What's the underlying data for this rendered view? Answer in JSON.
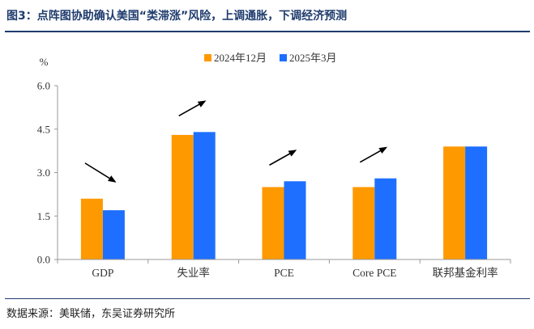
{
  "figure": {
    "title": "图3：点阵图协助确认美国“类滞涨”风险，上调通胀，下调经济预测",
    "source": "数据来源：美联储，东吴证券研究所"
  },
  "colors": {
    "series1": "#FF9900",
    "series2": "#1E6FFF",
    "title": "#1F3C6E",
    "arrow": "#000000"
  },
  "chart_data": {
    "type": "bar",
    "unit_label": "%",
    "categories": [
      "GDP",
      "失业率",
      "PCE",
      "Core PCE",
      "联邦基金利率"
    ],
    "series": [
      {
        "name": "2024年12月",
        "values": [
          2.1,
          4.3,
          2.5,
          2.5,
          3.9
        ]
      },
      {
        "name": "2025年3月",
        "values": [
          1.7,
          4.4,
          2.7,
          2.8,
          3.9
        ]
      }
    ],
    "ylim": [
      0,
      6
    ],
    "yticks": [
      "0.0",
      "1.5",
      "3.0",
      "4.5",
      "6.0"
    ],
    "legend_position": "top-center",
    "grid": false,
    "annotations": [
      {
        "category": "GDP",
        "direction": "down"
      },
      {
        "category": "失业率",
        "direction": "up"
      },
      {
        "category": "PCE",
        "direction": "up"
      },
      {
        "category": "Core PCE",
        "direction": "up"
      }
    ]
  }
}
